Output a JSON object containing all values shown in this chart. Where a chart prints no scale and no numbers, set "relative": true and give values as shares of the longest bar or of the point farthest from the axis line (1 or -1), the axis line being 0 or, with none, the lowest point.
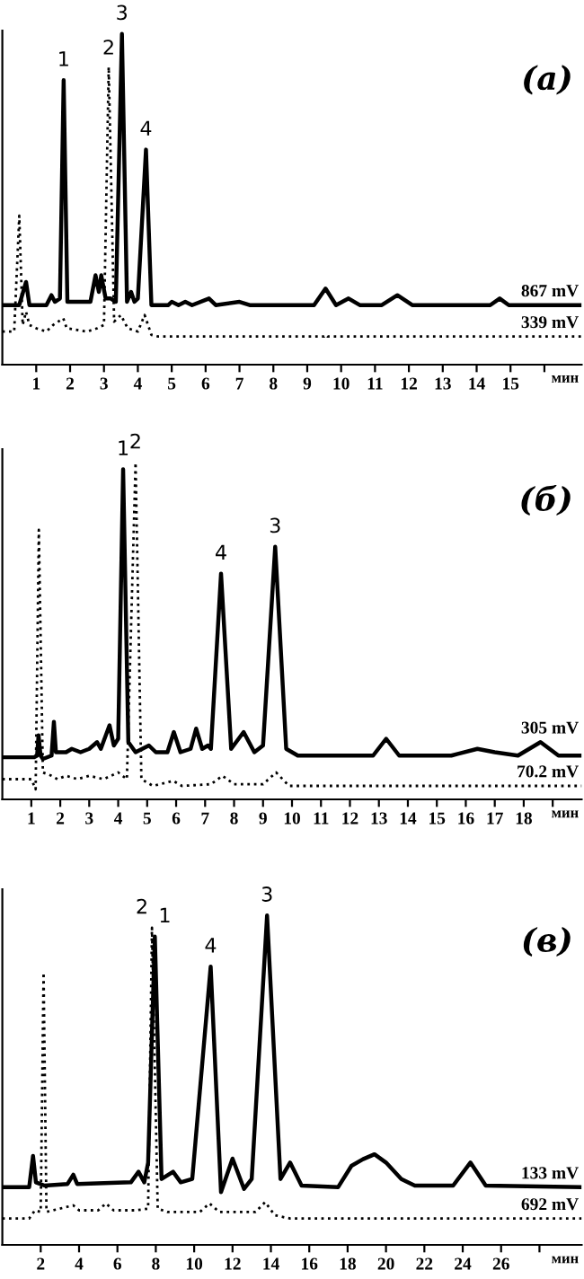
{
  "chart_data": [
    {
      "type": "line",
      "relative": true,
      "xlabel": "мин",
      "tick_labels": "x",
      "grid": false,
      "legend": false,
      "xlim": [
        0,
        17.1
      ],
      "xticks": [
        1,
        2,
        3,
        4,
        5,
        6,
        7,
        8,
        9,
        10,
        11,
        12,
        13,
        14,
        15,
        {
          "value": 16,
          "label": null
        }
      ],
      "annotations": [
        "(а)",
        {
          "text": "1",
          "x": 1.81,
          "y": 0.86
        },
        {
          "text": "2",
          "x": 3.14,
          "y": 0.895
        },
        {
          "text": "3",
          "x": 3.53,
          "y": 1.0
        },
        {
          "text": "4",
          "x": 4.24,
          "y": 0.65
        }
      ],
      "series": [
        {
          "name": "867 mV",
          "color": "#000000",
          "line_style": "solid",
          "x": [
            0,
            0.5,
            0.7,
            0.8,
            1.3,
            1.45,
            1.55,
            1.7,
            1.81,
            1.92,
            2.6,
            2.75,
            2.85,
            2.92,
            3.05,
            3.2,
            3.35,
            3.53,
            3.68,
            3.8,
            3.9,
            4.0,
            4.24,
            4.4,
            4.9,
            5.0,
            5.2,
            5.4,
            5.6,
            6.1,
            6.3,
            7.0,
            7.3,
            9.2,
            9.54,
            9.85,
            10.22,
            10.55,
            11.2,
            11.66,
            12.1,
            14.4,
            14.68,
            14.95,
            17.1
          ],
          "values": [
            0.18,
            0.18,
            0.25,
            0.18,
            0.18,
            0.21,
            0.19,
            0.2,
            0.86,
            0.19,
            0.19,
            0.27,
            0.22,
            0.27,
            0.2,
            0.2,
            0.19,
            1.0,
            0.19,
            0.22,
            0.19,
            0.2,
            0.65,
            0.18,
            0.18,
            0.19,
            0.18,
            0.19,
            0.18,
            0.2,
            0.18,
            0.19,
            0.18,
            0.18,
            0.23,
            0.18,
            0.2,
            0.18,
            0.18,
            0.21,
            0.18,
            0.18,
            0.2,
            0.18,
            0.18
          ]
        },
        {
          "name": "339 mV",
          "color": "#000000",
          "line_style": "dotted",
          "x": [
            0,
            0.35,
            0.5,
            0.6,
            0.7,
            0.8,
            1.0,
            1.3,
            1.5,
            1.8,
            1.9,
            2.5,
            2.8,
            3.0,
            3.14,
            3.3,
            3.5,
            3.7,
            4.0,
            4.2,
            4.4,
            4.6,
            9.5,
            9.55,
            9.6,
            17.1
          ],
          "values": [
            0.1,
            0.1,
            0.45,
            0.12,
            0.16,
            0.12,
            0.11,
            0.1,
            0.12,
            0.14,
            0.11,
            0.1,
            0.11,
            0.12,
            0.9,
            0.13,
            0.15,
            0.11,
            0.1,
            0.15,
            0.09,
            0.085,
            0.085,
            0.09,
            0.085,
            0.085
          ]
        }
      ]
    },
    {
      "type": "line",
      "relative": true,
      "xlabel": "мин",
      "tick_labels": "x",
      "grid": false,
      "legend": false,
      "xlim": [
        0,
        20
      ],
      "xticks": [
        1,
        2,
        3,
        4,
        5,
        6,
        7,
        8,
        9,
        10,
        11,
        12,
        13,
        14,
        15,
        16,
        17,
        18,
        {
          "value": 19,
          "label": null
        }
      ],
      "annotations": [
        "(б)",
        {
          "text": "1",
          "x": 4.17,
          "y": 0.98
        },
        {
          "text": "2",
          "x": 4.6,
          "y": 1.0
        },
        {
          "text": "4",
          "x": 7.55,
          "y": 0.67
        },
        {
          "text": "3",
          "x": 9.42,
          "y": 0.75
        }
      ],
      "series": [
        {
          "name": "305 mV",
          "color": "#000000",
          "line_style": "solid",
          "x": [
            0,
            1.1,
            1.2,
            1.25,
            1.32,
            1.4,
            1.7,
            1.78,
            1.85,
            2.2,
            2.4,
            2.7,
            3.0,
            3.27,
            3.4,
            3.7,
            3.85,
            4.0,
            4.17,
            4.35,
            4.6,
            5.06,
            5.3,
            5.7,
            5.92,
            6.15,
            6.5,
            6.69,
            6.9,
            7.1,
            7.2,
            7.55,
            7.9,
            8.33,
            8.7,
            9.0,
            9.42,
            9.8,
            10.2,
            12.8,
            13.25,
            13.7,
            15.5,
            16.4,
            17.0,
            17.8,
            18.58,
            19.2,
            20
          ],
          "values": [
            0.125,
            0.125,
            0.13,
            0.19,
            0.13,
            0.12,
            0.13,
            0.23,
            0.14,
            0.14,
            0.15,
            0.14,
            0.15,
            0.17,
            0.15,
            0.22,
            0.16,
            0.18,
            0.98,
            0.17,
            0.14,
            0.16,
            0.14,
            0.14,
            0.2,
            0.14,
            0.15,
            0.21,
            0.15,
            0.16,
            0.15,
            0.67,
            0.15,
            0.2,
            0.14,
            0.16,
            0.75,
            0.15,
            0.13,
            0.13,
            0.18,
            0.13,
            0.13,
            0.15,
            0.14,
            0.13,
            0.17,
            0.13,
            0.13
          ]
        },
        {
          "name": "70.2 mV",
          "color": "#000000",
          "line_style": "dotted",
          "x": [
            0,
            1.0,
            1.15,
            1.26,
            1.4,
            1.7,
            1.9,
            2.2,
            2.6,
            3.0,
            3.5,
            4.0,
            4.3,
            4.6,
            4.8,
            5.2,
            5.9,
            6.2,
            7.2,
            7.6,
            8.0,
            9.0,
            9.45,
            9.9,
            20
          ],
          "values": [
            0.06,
            0.06,
            0.03,
            0.8,
            0.08,
            0.07,
            0.06,
            0.07,
            0.06,
            0.07,
            0.06,
            0.08,
            0.06,
            1.0,
            0.06,
            0.04,
            0.055,
            0.04,
            0.045,
            0.07,
            0.045,
            0.045,
            0.08,
            0.04,
            0.04
          ]
        }
      ]
    },
    {
      "type": "line",
      "relative": true,
      "xlabel": "мин",
      "tick_labels": "x",
      "grid": false,
      "legend": false,
      "xlim": [
        0,
        30.2
      ],
      "xticks": [
        2,
        4,
        6,
        8,
        10,
        12,
        14,
        16,
        18,
        20,
        22,
        24,
        26,
        {
          "value": 28,
          "label": null
        }
      ],
      "annotations": [
        "(в)",
        {
          "text": "2",
          "x": 7.8,
          "y": 0.963
        },
        {
          "text": "1",
          "x": 7.95,
          "y": 0.936
        },
        {
          "text": "4",
          "x": 10.86,
          "y": 0.845
        },
        {
          "text": "3",
          "x": 13.8,
          "y": 1.0
        }
      ],
      "series": [
        {
          "name": "133 mV",
          "color": "#000000",
          "line_style": "solid",
          "x": [
            0,
            1.4,
            1.6,
            1.75,
            2.2,
            3.4,
            3.7,
            3.9,
            6.7,
            7.1,
            7.4,
            7.6,
            7.95,
            8.3,
            8.9,
            9.3,
            9.9,
            10.86,
            11.4,
            12.0,
            12.6,
            13.0,
            13.8,
            14.5,
            15.0,
            15.6,
            17.5,
            18.2,
            18.8,
            19.4,
            20.0,
            20.8,
            21.5,
            23.5,
            24.4,
            25.2,
            30.2
          ],
          "values": [
            0.175,
            0.175,
            0.27,
            0.19,
            0.18,
            0.185,
            0.213,
            0.185,
            0.19,
            0.222,
            0.19,
            0.25,
            0.936,
            0.2,
            0.222,
            0.19,
            0.2,
            0.845,
            0.16,
            0.262,
            0.17,
            0.2,
            1.0,
            0.2,
            0.25,
            0.18,
            0.175,
            0.24,
            0.26,
            0.275,
            0.25,
            0.2,
            0.18,
            0.18,
            0.25,
            0.18,
            0.175
          ]
        },
        {
          "name": "692 mV",
          "color": "#000000",
          "line_style": "dotted",
          "x": [
            0,
            1.4,
            1.7,
            2.0,
            2.15,
            2.3,
            3.0,
            3.7,
            4.0,
            5.0,
            5.4,
            5.8,
            7.0,
            7.6,
            7.8,
            8.1,
            8.6,
            10.3,
            10.8,
            11.3,
            13.2,
            13.7,
            14.2,
            15.0,
            30.2
          ],
          "values": [
            0.08,
            0.08,
            0.105,
            0.1,
            0.827,
            0.1,
            0.11,
            0.12,
            0.105,
            0.105,
            0.126,
            0.105,
            0.105,
            0.11,
            0.963,
            0.11,
            0.1,
            0.1,
            0.126,
            0.1,
            0.1,
            0.13,
            0.09,
            0.08,
            0.08
          ]
        }
      ]
    }
  ]
}
